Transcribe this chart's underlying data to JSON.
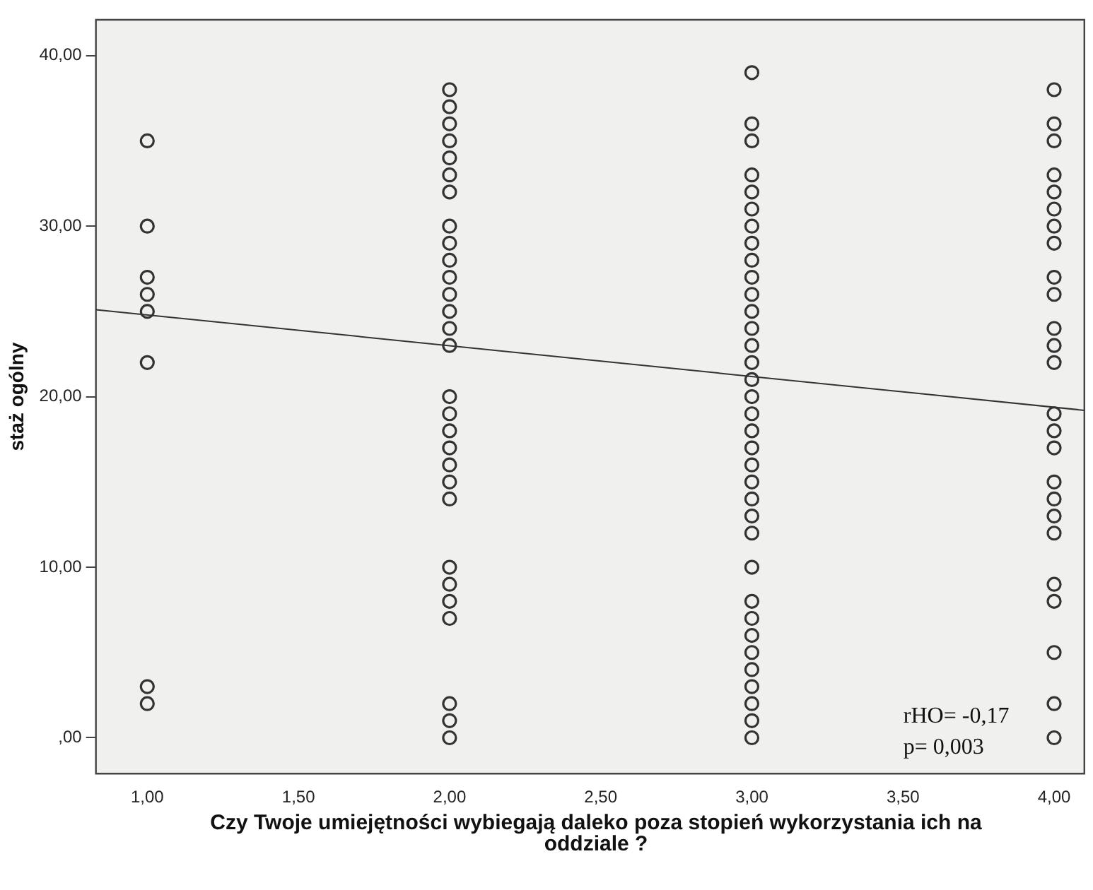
{
  "chart_data": {
    "type": "scatter",
    "xlabel": "Czy Twoje umiejętności wybiegają daleko poza stopień wykorzystania ich na oddziale ?",
    "ylabel": "staż ogólny",
    "marker": "circle",
    "grid": false,
    "legend": false,
    "xlim": [
      0.83,
      4.1
    ],
    "ylim": [
      -2.1,
      42.1
    ],
    "xticks": [
      {
        "value": 1,
        "label": "1,00"
      },
      {
        "value": 1.5,
        "label": "1,50"
      },
      {
        "value": 2,
        "label": "2,00"
      },
      {
        "value": 2.5,
        "label": "2,50"
      },
      {
        "value": 3,
        "label": "3,00"
      },
      {
        "value": 3.5,
        "label": "3,50"
      },
      {
        "value": 4,
        "label": "4,00"
      }
    ],
    "yticks": [
      {
        "value": 0,
        "label": ",00"
      },
      {
        "value": 10,
        "label": "10,00"
      },
      {
        "value": 20,
        "label": "20,00"
      },
      {
        "value": 30,
        "label": "30,00"
      },
      {
        "value": 40,
        "label": "40,00"
      }
    ],
    "annotations": [
      "rHO= -0,17",
      "p= 0,003"
    ],
    "series": [
      {
        "color": "#333333",
        "x": [
          1,
          1,
          1,
          1,
          1,
          1,
          1,
          1,
          2,
          2,
          2,
          2,
          2,
          2,
          2,
          2,
          2,
          2,
          2,
          2,
          2,
          2,
          2,
          2,
          2,
          2,
          2,
          2,
          2,
          2,
          2,
          2,
          2,
          2,
          2,
          2,
          2,
          3,
          3,
          3,
          3,
          3,
          3,
          3,
          3,
          3,
          3,
          3,
          3,
          3,
          3,
          3,
          3,
          3,
          3,
          3,
          3,
          3,
          3,
          3,
          3,
          3,
          3,
          3,
          3,
          3,
          3,
          3,
          3,
          3,
          3,
          3,
          4,
          4,
          4,
          4,
          4,
          4,
          4,
          4,
          4,
          4,
          4,
          4,
          4,
          4,
          4,
          4,
          4,
          4,
          4,
          4,
          4,
          4,
          4,
          4,
          4
        ],
        "values": [
          35,
          30,
          27,
          26,
          25,
          22,
          3,
          2,
          38,
          37,
          36,
          35,
          34,
          33,
          32,
          30,
          29,
          28,
          27,
          26,
          25,
          24,
          23,
          20,
          19,
          18,
          17,
          16,
          15,
          14,
          10,
          9,
          8,
          7,
          2,
          1,
          0,
          39,
          36,
          35,
          33,
          32,
          31,
          30,
          29,
          28,
          27,
          26,
          25,
          24,
          23,
          22,
          21,
          20,
          19,
          18,
          17,
          16,
          15,
          14,
          13,
          12,
          10,
          8,
          7,
          6,
          5,
          4,
          3,
          2,
          1,
          0,
          38,
          36,
          35,
          33,
          32,
          31,
          30,
          29,
          27,
          26,
          24,
          23,
          22,
          19,
          18,
          17,
          15,
          14,
          13,
          12,
          9,
          8,
          5,
          2,
          0
        ]
      },
      {
        "type": "line",
        "color": "#333333",
        "marker": "none",
        "x": [
          0.83,
          4.1
        ],
        "values": [
          25.1,
          19.2
        ]
      }
    ]
  }
}
